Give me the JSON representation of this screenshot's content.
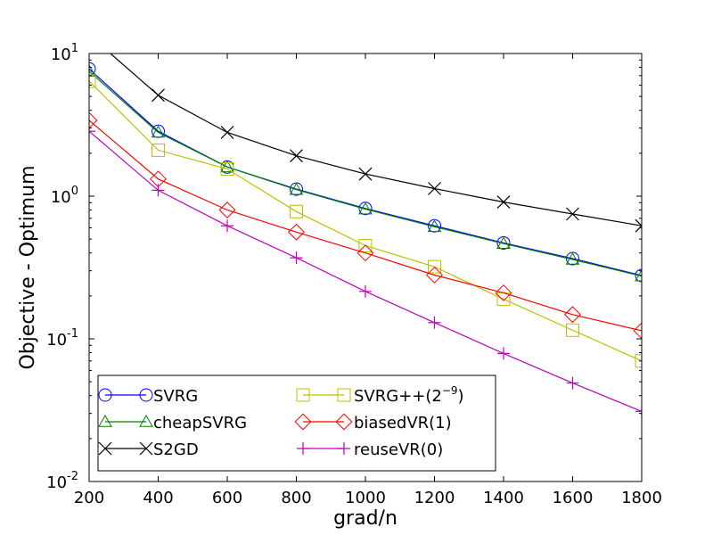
{
  "chart_data": {
    "type": "line",
    "xlabel": "grad/n",
    "ylabel": "Objective - Optimum",
    "xlim": [
      200,
      1800
    ],
    "ylim": [
      0.01,
      10
    ],
    "yscale": "log",
    "x_ticks": [
      "200",
      "400",
      "600",
      "800",
      "1000",
      "1200",
      "1400",
      "1600",
      "1800"
    ],
    "x_tick_values": [
      200,
      400,
      600,
      800,
      1000,
      1200,
      1400,
      1600,
      1800
    ],
    "y_ticks": [
      {
        "value": 10,
        "base": "10",
        "exp": "1"
      },
      {
        "value": 1,
        "base": "10",
        "exp": "0"
      },
      {
        "value": 0.1,
        "base": "10",
        "exp": "-1"
      },
      {
        "value": 0.01,
        "base": "10",
        "exp": "-2"
      }
    ],
    "grid": false,
    "legend_position": "lower-left",
    "series": [
      {
        "name": "SVRG",
        "color": "#0000ff",
        "marker": "circle",
        "x": [
          200,
          400,
          600,
          800,
          1000,
          1200,
          1400,
          1600,
          1800
        ],
        "y": [
          7.8,
          2.85,
          1.6,
          1.12,
          0.82,
          0.62,
          0.47,
          0.365,
          0.278
        ]
      },
      {
        "name": "cheapSVRG",
        "color": "#008000",
        "marker": "triangle",
        "x": [
          200,
          400,
          600,
          800,
          1000,
          1200,
          1400,
          1600,
          1800
        ],
        "y": [
          7.5,
          2.8,
          1.6,
          1.11,
          0.81,
          0.61,
          0.465,
          0.36,
          0.275
        ]
      },
      {
        "name": "S2GD",
        "color": "#000000",
        "marker": "x",
        "x": [
          200,
          400,
          600,
          800,
          1000,
          1200,
          1400,
          1600,
          1800
        ],
        "y": [
          13.5,
          5.1,
          2.8,
          1.92,
          1.43,
          1.13,
          0.91,
          0.75,
          0.62
        ]
      },
      {
        "name": "SVRG++(2^{-9})",
        "color": "#bfbf00",
        "marker": "square",
        "x": [
          200,
          400,
          600,
          800,
          1000,
          1200,
          1400,
          1600,
          1800
        ],
        "y": [
          6.4,
          2.1,
          1.55,
          0.78,
          0.45,
          0.32,
          0.19,
          0.115,
          0.07
        ]
      },
      {
        "name": "biasedVR(1)",
        "color": "#ff0000",
        "marker": "diamond",
        "x": [
          200,
          400,
          600,
          800,
          1000,
          1200,
          1400,
          1600,
          1800
        ],
        "y": [
          3.4,
          1.32,
          0.8,
          0.56,
          0.4,
          0.28,
          0.21,
          0.148,
          0.114
        ]
      },
      {
        "name": "reuseVR(0)",
        "color": "#bf00bf",
        "marker": "plus",
        "x": [
          200,
          400,
          600,
          800,
          1000,
          1200,
          1400,
          1600,
          1800
        ],
        "y": [
          2.85,
          1.1,
          0.62,
          0.37,
          0.215,
          0.13,
          0.079,
          0.049,
          0.031
        ]
      }
    ],
    "legend": [
      {
        "label": "SVRG"
      },
      {
        "label": "cheapSVRG"
      },
      {
        "label": "S2GD"
      },
      {
        "label_main": "SVRG++(2",
        "label_sup": "−9",
        "label_tail": ")"
      },
      {
        "label_main": "biasedVR(1)"
      },
      {
        "label_main": "reuseVR(0)"
      }
    ]
  }
}
